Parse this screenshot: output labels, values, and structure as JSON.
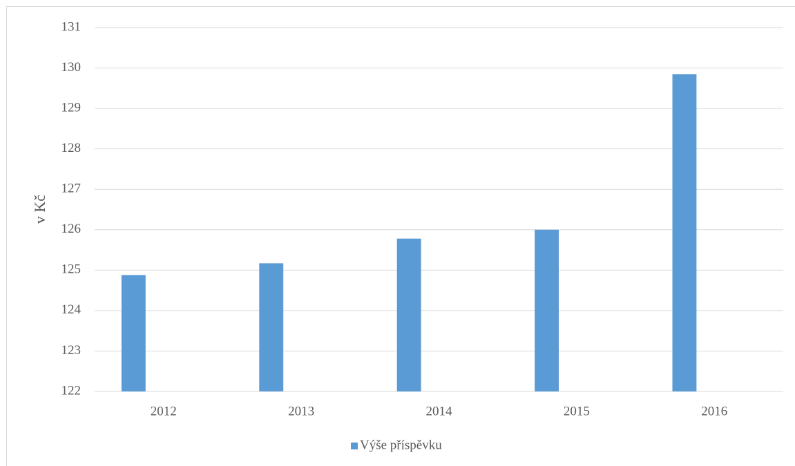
{
  "chart_data": {
    "type": "bar",
    "y_label": "v Kč",
    "categories": [
      "2012",
      "2013",
      "2014",
      "2015",
      "2016"
    ],
    "series": [
      {
        "name": "Výše příspěvku",
        "color": "#5b9bd5",
        "values": [
          124.88,
          125.17,
          125.78,
          126.0,
          129.85
        ]
      }
    ],
    "ylim": [
      122,
      131
    ],
    "yticks": [
      122,
      123,
      124,
      125,
      126,
      127,
      128,
      129,
      130,
      131
    ],
    "grid": true,
    "legend": "bottom"
  }
}
